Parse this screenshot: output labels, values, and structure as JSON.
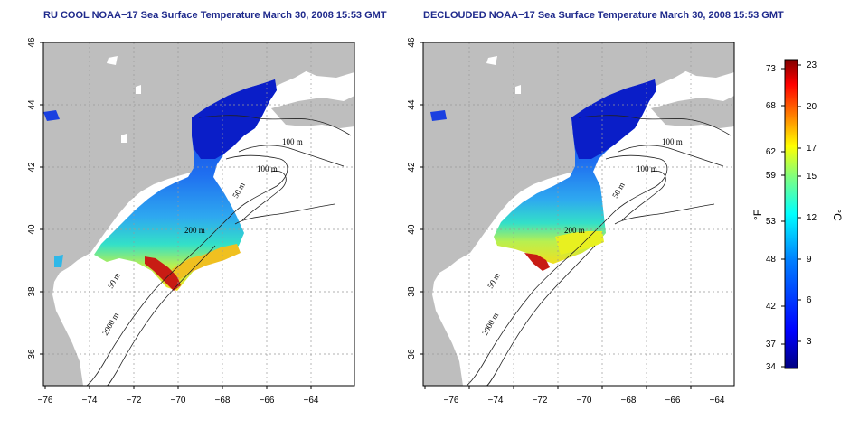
{
  "panels": [
    {
      "title": "RU COOL NOAA−17 Sea Surface Temperature March 30, 2008 15:53 GMT",
      "x_ticks": [
        "−76",
        "−74",
        "−72",
        "−70",
        "−68",
        "−66",
        "−64"
      ],
      "y_ticks": [
        "46",
        "44",
        "42",
        "40",
        "38",
        "36"
      ],
      "contour_labels": [
        "100 m",
        "100 m",
        "50 m",
        "200 m",
        "50 m",
        "2000 m"
      ]
    },
    {
      "title": "DECLOUDED NOAA−17 Sea Surface Temperature March 30, 2008 15:53 GMT",
      "x_ticks": [
        "−76",
        "−74",
        "−72",
        "−70",
        "−68",
        "−66",
        "−64"
      ],
      "y_ticks": [
        "46",
        "44",
        "42",
        "40",
        "38",
        "36"
      ],
      "contour_labels": [
        "100 m",
        "100 m",
        "50 m",
        "200 m",
        "50 m",
        "2000 m"
      ]
    }
  ],
  "colorbar": {
    "fahrenheit_label": "°F",
    "celsius_label": "°C",
    "fahrenheit_ticks": [
      "73",
      "68",
      "62",
      "59",
      "53",
      "48",
      "42",
      "37",
      "34"
    ],
    "celsius_ticks": [
      "23",
      "20",
      "17",
      "15",
      "12",
      "9",
      "6",
      "3"
    ],
    "colors": [
      "#00007f",
      "#0000ff",
      "#007fff",
      "#00ffff",
      "#7fff7f",
      "#ffff00",
      "#ff7f00",
      "#ff0000",
      "#7f0000"
    ]
  },
  "colors": {
    "land": "#bebebe",
    "title": "#1f2a8c"
  }
}
